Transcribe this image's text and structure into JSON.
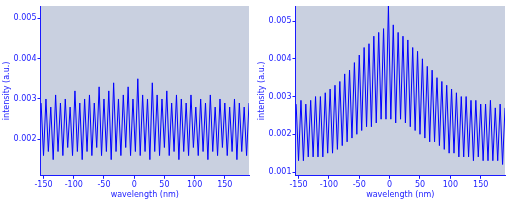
{
  "chart_data": [
    {
      "type": "line",
      "x_label": "wavelength (nm)",
      "y_label": "intensity (a.u.)",
      "color": "#0000ff",
      "grid": false,
      "xlim": [
        -155,
        190
      ],
      "xticks": [
        -150,
        -100,
        -50,
        0,
        50,
        100,
        150
      ],
      "ylim": [
        0.0011,
        0.0053
      ],
      "yticks": [
        0.002,
        0.003,
        0.004,
        0.005
      ],
      "x": [
        -154,
        -150,
        -146,
        -142,
        -138,
        -134,
        -130,
        -126,
        -122,
        -118,
        -114,
        -110,
        -106,
        -102,
        -98,
        -94,
        -90,
        -86,
        -82,
        -78,
        -74,
        -70,
        -66,
        -62,
        -58,
        -54,
        -50,
        -46,
        -42,
        -38,
        -34,
        -30,
        -26,
        -22,
        -18,
        -14,
        -10,
        -6,
        -2,
        2,
        6,
        10,
        14,
        18,
        22,
        26,
        30,
        34,
        38,
        42,
        46,
        50,
        54,
        58,
        62,
        66,
        70,
        74,
        78,
        82,
        86,
        90,
        94,
        98,
        102,
        106,
        110,
        114,
        118,
        122,
        126,
        130,
        134,
        138,
        142,
        146,
        150,
        154,
        158,
        162,
        166,
        170,
        174,
        178,
        182,
        186,
        190
      ],
      "values": [
        0.0029,
        0.0016,
        0.003,
        0.0017,
        0.0028,
        0.0015,
        0.0031,
        0.0017,
        0.0029,
        0.0016,
        0.003,
        0.0018,
        0.0028,
        0.0016,
        0.0032,
        0.0017,
        0.0029,
        0.0015,
        0.003,
        0.0017,
        0.0031,
        0.0016,
        0.0029,
        0.0018,
        0.0033,
        0.0016,
        0.003,
        0.0017,
        0.0032,
        0.0015,
        0.0034,
        0.0017,
        0.003,
        0.0016,
        0.0031,
        0.0018,
        0.0033,
        0.0016,
        0.003,
        0.0017,
        0.0035,
        0.0016,
        0.0031,
        0.0017,
        0.003,
        0.0015,
        0.0034,
        0.0017,
        0.0031,
        0.0016,
        0.003,
        0.0018,
        0.0032,
        0.0016,
        0.0029,
        0.0017,
        0.0031,
        0.0015,
        0.003,
        0.0017,
        0.0029,
        0.0016,
        0.0031,
        0.0018,
        0.0028,
        0.0016,
        0.003,
        0.0017,
        0.0029,
        0.0015,
        0.0031,
        0.0017,
        0.0028,
        0.0016,
        0.003,
        0.0018,
        0.0029,
        0.0016,
        0.0028,
        0.0017,
        0.003,
        0.0015,
        0.0029,
        0.0017,
        0.0028,
        0.0016,
        0.0029
      ]
    },
    {
      "type": "line",
      "x_label": "wavelength (nm)",
      "y_label": "intensity (a.u.)",
      "color": "#0000ff",
      "grid": false,
      "xlim": [
        -155,
        190
      ],
      "xticks": [
        -150,
        -100,
        -50,
        0,
        50,
        100,
        150
      ],
      "ylim": [
        0.0009,
        0.0054
      ],
      "yticks": [
        0.001,
        0.002,
        0.003,
        0.004,
        0.005
      ],
      "x": [
        -154,
        -150,
        -146,
        -142,
        -138,
        -134,
        -130,
        -126,
        -122,
        -118,
        -114,
        -110,
        -106,
        -102,
        -98,
        -94,
        -90,
        -86,
        -82,
        -78,
        -74,
        -70,
        -66,
        -62,
        -58,
        -54,
        -50,
        -46,
        -42,
        -38,
        -34,
        -30,
        -26,
        -22,
        -18,
        -14,
        -10,
        -6,
        -2,
        2,
        6,
        10,
        14,
        18,
        22,
        26,
        30,
        34,
        38,
        42,
        46,
        50,
        54,
        58,
        62,
        66,
        70,
        74,
        78,
        82,
        86,
        90,
        94,
        98,
        102,
        106,
        110,
        114,
        118,
        122,
        126,
        130,
        134,
        138,
        142,
        146,
        150,
        154,
        158,
        162,
        166,
        170,
        174,
        178,
        182,
        186,
        190
      ],
      "values": [
        0.0028,
        0.0013,
        0.0029,
        0.0013,
        0.0028,
        0.0014,
        0.0029,
        0.0014,
        0.003,
        0.0014,
        0.003,
        0.0014,
        0.0031,
        0.0015,
        0.0032,
        0.0015,
        0.0033,
        0.0016,
        0.0034,
        0.0017,
        0.0036,
        0.0018,
        0.0037,
        0.0019,
        0.0039,
        0.002,
        0.0041,
        0.0021,
        0.0043,
        0.0022,
        0.0044,
        0.0022,
        0.0046,
        0.0023,
        0.0047,
        0.0024,
        0.0048,
        0.0024,
        0.0054,
        0.0024,
        0.0049,
        0.0023,
        0.0047,
        0.0024,
        0.0046,
        0.0023,
        0.0045,
        0.0022,
        0.0043,
        0.0021,
        0.0042,
        0.002,
        0.004,
        0.0019,
        0.0038,
        0.0018,
        0.0037,
        0.0018,
        0.0035,
        0.0017,
        0.0034,
        0.0016,
        0.0033,
        0.0015,
        0.0032,
        0.0015,
        0.0031,
        0.0014,
        0.003,
        0.0014,
        0.003,
        0.0014,
        0.0029,
        0.0013,
        0.0029,
        0.0014,
        0.0028,
        0.0013,
        0.0028,
        0.0013,
        0.0029,
        0.0013,
        0.0027,
        0.0013,
        0.0028,
        0.0012,
        0.0027
      ]
    }
  ]
}
